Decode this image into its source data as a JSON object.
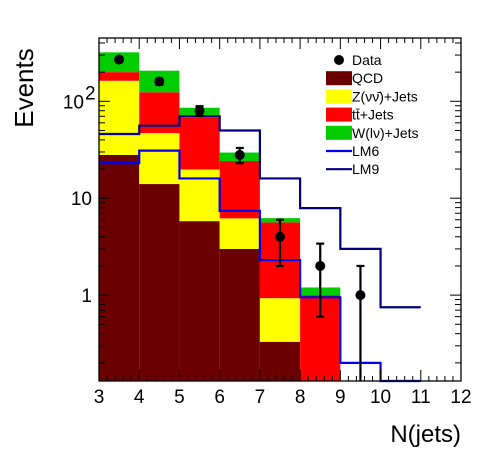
{
  "chart_data": {
    "type": "bar",
    "stacked": true,
    "xlabel": "N(jets)",
    "ylabel": "Events",
    "xlim": [
      3,
      12
    ],
    "ylim": [
      0.13,
      450
    ],
    "log_y": true,
    "grid": false,
    "legend_position": "top-right",
    "x_ticks": [
      "3",
      "4",
      "5",
      "6",
      "7",
      "8",
      "9",
      "10",
      "11",
      "12"
    ],
    "y_ticks": [
      {
        "value": 1,
        "label": "1"
      },
      {
        "value": 10,
        "label": "10"
      },
      {
        "value": 100,
        "label": "10",
        "exponent": "2"
      }
    ],
    "bins": [
      [
        3,
        4
      ],
      [
        4,
        5
      ],
      [
        5,
        6
      ],
      [
        6,
        7
      ],
      [
        7,
        8
      ],
      [
        8,
        9
      ],
      [
        9,
        10
      ],
      [
        10,
        11
      ]
    ],
    "stack": [
      {
        "name": "QCD",
        "color": "#6b0000",
        "values": [
          28,
          14,
          5.8,
          3.0,
          0.33,
          0,
          0,
          0
        ]
      },
      {
        "name": "Z(νν̄)+Jets",
        "color": "#ffff00",
        "values": [
          135,
          33,
          14,
          3.2,
          0.6,
          0,
          0,
          0
        ]
      },
      {
        "name": "tt̄+Jets",
        "color": "#ff0000",
        "values": [
          37,
          77,
          48,
          18,
          4.7,
          1.0,
          0,
          0
        ]
      },
      {
        "name": "W(lν)+Jets",
        "color": "#00cc00",
        "values": [
          120,
          83,
          18,
          5.4,
          0.6,
          0.2,
          0,
          0
        ]
      }
    ],
    "data": {
      "name": "Data",
      "x": [
        3.5,
        4.5,
        5.5,
        6.5,
        7.5,
        8.5,
        9.5
      ],
      "y": [
        270,
        160,
        80,
        28,
        4,
        2,
        1
      ],
      "err_low": [
        16,
        12,
        9,
        5,
        2,
        1.4,
        1
      ],
      "err_high": [
        16,
        12,
        9,
        5,
        2,
        1.4,
        1
      ]
    },
    "lines": [
      {
        "name": "LM6",
        "color": "#0000ee",
        "values": [
          23,
          31,
          16,
          7.4,
          2.3,
          0.95,
          0.2,
          0
        ]
      },
      {
        "name": "LM9",
        "color": "#000080",
        "values": [
          46,
          56,
          70,
          50,
          16,
          7.9,
          3.0,
          0.75
        ]
      }
    ]
  }
}
